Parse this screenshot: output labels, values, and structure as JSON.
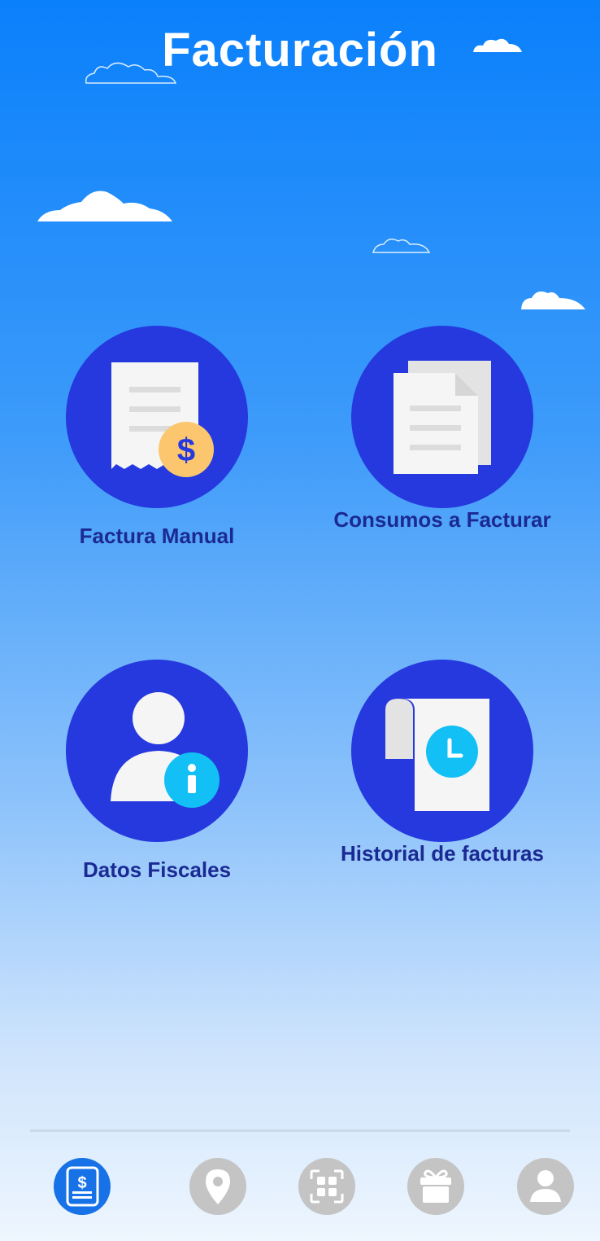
{
  "header": {
    "title": "Facturación"
  },
  "menu": [
    {
      "label": "Factura Manual",
      "icon": "receipt-dollar-icon"
    },
    {
      "label": "Consumos a Facturar",
      "icon": "documents-icon"
    },
    {
      "label": "Datos Fiscales",
      "icon": "user-info-icon"
    },
    {
      "label": "Historial de facturas",
      "icon": "document-clock-icon"
    }
  ],
  "bottom_nav": [
    {
      "icon": "invoice-icon",
      "active": true
    },
    {
      "icon": "location-pin-icon",
      "active": false
    },
    {
      "icon": "qr-scan-icon",
      "active": false
    },
    {
      "icon": "gift-icon",
      "active": false
    },
    {
      "icon": "profile-icon",
      "active": false
    }
  ],
  "colors": {
    "circle": "#2539de",
    "label": "#1b2a93",
    "nav_active": "#1672e6",
    "nav_inactive": "#c4c4c4",
    "coin": "#fbc66e",
    "accent_cyan": "#12c0f5"
  }
}
